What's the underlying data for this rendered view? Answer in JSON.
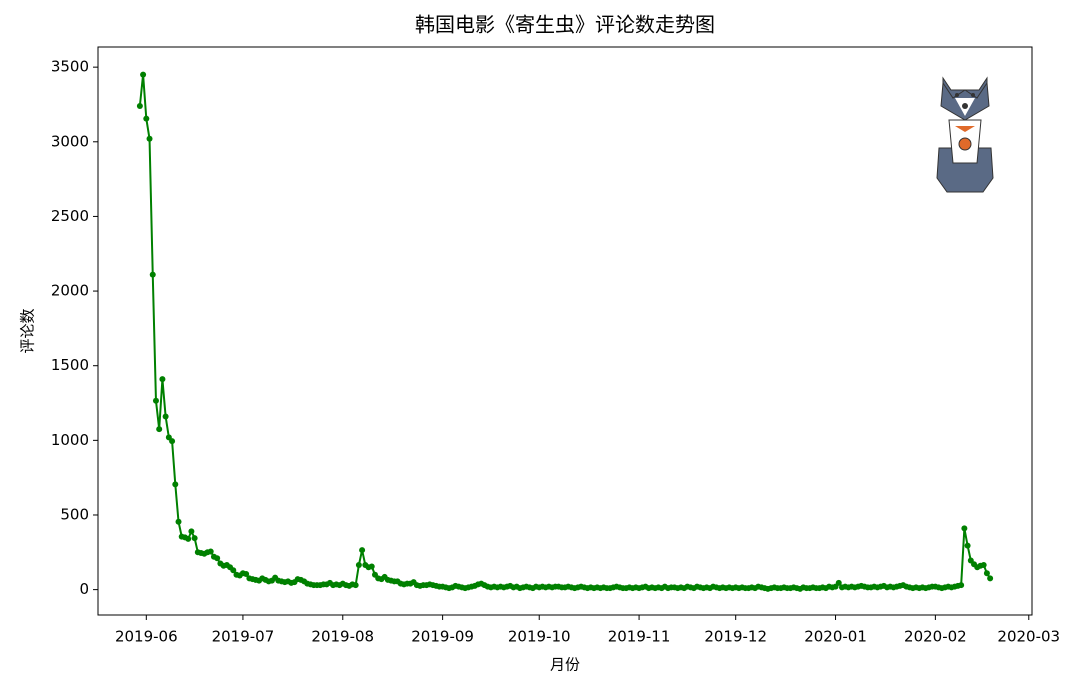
{
  "chart_data": {
    "type": "line",
    "title": "韩国电影《寄生虫》评论数走势图",
    "x_label": "月份",
    "y_label": "评论数",
    "color": "#008000",
    "x": [
      "2019-05-30",
      "2019-05-31",
      "2019-06-01",
      "2019-06-02",
      "2019-06-03",
      "2019-06-04",
      "2019-06-05",
      "2019-06-06",
      "2019-06-07",
      "2019-06-08",
      "2019-06-09",
      "2019-06-10",
      "2019-06-11",
      "2019-06-12",
      "2019-06-13",
      "2019-06-14",
      "2019-06-15",
      "2019-06-16",
      "2019-06-17",
      "2019-06-18",
      "2019-06-19",
      "2019-06-20",
      "2019-06-21",
      "2019-06-22",
      "2019-06-23",
      "2019-06-24",
      "2019-06-25",
      "2019-06-26",
      "2019-06-27",
      "2019-06-28",
      "2019-06-29",
      "2019-06-30",
      "2019-07-01",
      "2019-07-02",
      "2019-07-03",
      "2019-07-04",
      "2019-07-05",
      "2019-07-06",
      "2019-07-07",
      "2019-07-08",
      "2019-07-09",
      "2019-07-10",
      "2019-07-11",
      "2019-07-12",
      "2019-07-13",
      "2019-07-14",
      "2019-07-15",
      "2019-07-16",
      "2019-07-17",
      "2019-07-18",
      "2019-07-19",
      "2019-07-20",
      "2019-07-21",
      "2019-07-22",
      "2019-07-23",
      "2019-07-24",
      "2019-07-25",
      "2019-07-26",
      "2019-07-27",
      "2019-07-28",
      "2019-07-29",
      "2019-07-30",
      "2019-07-31",
      "2019-08-01",
      "2019-08-02",
      "2019-08-03",
      "2019-08-04",
      "2019-08-05",
      "2019-08-06",
      "2019-08-07",
      "2019-08-08",
      "2019-08-09",
      "2019-08-10",
      "2019-08-11",
      "2019-08-12",
      "2019-08-13",
      "2019-08-14",
      "2019-08-15",
      "2019-08-16",
      "2019-08-17",
      "2019-08-18",
      "2019-08-19",
      "2019-08-20",
      "2019-08-21",
      "2019-08-22",
      "2019-08-23",
      "2019-08-24",
      "2019-08-25",
      "2019-08-26",
      "2019-08-27",
      "2019-08-28",
      "2019-08-29",
      "2019-08-30",
      "2019-08-31",
      "2019-09-01",
      "2019-09-02",
      "2019-09-03",
      "2019-09-04",
      "2019-09-05",
      "2019-09-06",
      "2019-09-07",
      "2019-09-08",
      "2019-09-09",
      "2019-09-10",
      "2019-09-11",
      "2019-09-12",
      "2019-09-13",
      "2019-09-14",
      "2019-09-15",
      "2019-09-16",
      "2019-09-17",
      "2019-09-18",
      "2019-09-19",
      "2019-09-20",
      "2019-09-21",
      "2019-09-22",
      "2019-09-23",
      "2019-09-24",
      "2019-09-25",
      "2019-09-26",
      "2019-09-27",
      "2019-09-28",
      "2019-09-29",
      "2019-09-30",
      "2019-10-01",
      "2019-10-02",
      "2019-10-03",
      "2019-10-04",
      "2019-10-05",
      "2019-10-06",
      "2019-10-07",
      "2019-10-08",
      "2019-10-09",
      "2019-10-10",
      "2019-10-11",
      "2019-10-12",
      "2019-10-13",
      "2019-10-14",
      "2019-10-15",
      "2019-10-16",
      "2019-10-17",
      "2019-10-18",
      "2019-10-19",
      "2019-10-20",
      "2019-10-21",
      "2019-10-22",
      "2019-10-23",
      "2019-10-24",
      "2019-10-25",
      "2019-10-26",
      "2019-10-27",
      "2019-10-28",
      "2019-10-29",
      "2019-10-30",
      "2019-10-31",
      "2019-11-01",
      "2019-11-02",
      "2019-11-03",
      "2019-11-04",
      "2019-11-05",
      "2019-11-06",
      "2019-11-07",
      "2019-11-08",
      "2019-11-09",
      "2019-11-10",
      "2019-11-11",
      "2019-11-12",
      "2019-11-13",
      "2019-11-14",
      "2019-11-15",
      "2019-11-16",
      "2019-11-17",
      "2019-11-18",
      "2019-11-19",
      "2019-11-20",
      "2019-11-21",
      "2019-11-22",
      "2019-11-23",
      "2019-11-24",
      "2019-11-25",
      "2019-11-26",
      "2019-11-27",
      "2019-11-28",
      "2019-11-29",
      "2019-11-30",
      "2019-12-01",
      "2019-12-02",
      "2019-12-03",
      "2019-12-04",
      "2019-12-05",
      "2019-12-06",
      "2019-12-07",
      "2019-12-08",
      "2019-12-09",
      "2019-12-10",
      "2019-12-11",
      "2019-12-12",
      "2019-12-13",
      "2019-12-14",
      "2019-12-15",
      "2019-12-16",
      "2019-12-17",
      "2019-12-18",
      "2019-12-19",
      "2019-12-20",
      "2019-12-21",
      "2019-12-22",
      "2019-12-23",
      "2019-12-24",
      "2019-12-25",
      "2019-12-26",
      "2019-12-27",
      "2019-12-28",
      "2019-12-29",
      "2019-12-30",
      "2019-12-31",
      "2020-01-01",
      "2020-01-02",
      "2020-01-03",
      "2020-01-04",
      "2020-01-05",
      "2020-01-06",
      "2020-01-07",
      "2020-01-08",
      "2020-01-09",
      "2020-01-10",
      "2020-01-11",
      "2020-01-12",
      "2020-01-13",
      "2020-01-14",
      "2020-01-15",
      "2020-01-16",
      "2020-01-17",
      "2020-01-18",
      "2020-01-19",
      "2020-01-20",
      "2020-01-21",
      "2020-01-22",
      "2020-01-23",
      "2020-01-24",
      "2020-01-25",
      "2020-01-26",
      "2020-01-27",
      "2020-01-28",
      "2020-01-29",
      "2020-01-30",
      "2020-01-31",
      "2020-02-01",
      "2020-02-02",
      "2020-02-03",
      "2020-02-04",
      "2020-02-05",
      "2020-02-06",
      "2020-02-07",
      "2020-02-08",
      "2020-02-09",
      "2020-02-10",
      "2020-02-11",
      "2020-02-12",
      "2020-02-13",
      "2020-02-14",
      "2020-02-15",
      "2020-02-16",
      "2020-02-17",
      "2020-02-18"
    ],
    "values": [
      3240,
      3450,
      3155,
      3020,
      2110,
      1265,
      1075,
      1410,
      1160,
      1020,
      995,
      705,
      455,
      355,
      350,
      340,
      390,
      345,
      250,
      245,
      240,
      250,
      255,
      220,
      210,
      175,
      160,
      165,
      150,
      130,
      100,
      95,
      110,
      105,
      75,
      70,
      65,
      60,
      75,
      65,
      55,
      60,
      80,
      60,
      55,
      50,
      55,
      45,
      50,
      70,
      65,
      55,
      40,
      35,
      30,
      30,
      30,
      35,
      35,
      45,
      30,
      35,
      30,
      40,
      30,
      25,
      35,
      30,
      165,
      265,
      165,
      150,
      155,
      100,
      75,
      70,
      85,
      65,
      60,
      55,
      55,
      40,
      35,
      40,
      40,
      50,
      30,
      25,
      30,
      30,
      35,
      30,
      25,
      20,
      20,
      15,
      10,
      15,
      25,
      20,
      15,
      10,
      15,
      20,
      25,
      35,
      40,
      30,
      20,
      15,
      20,
      15,
      20,
      15,
      20,
      25,
      15,
      20,
      10,
      15,
      20,
      15,
      10,
      20,
      15,
      20,
      15,
      20,
      15,
      20,
      20,
      15,
      15,
      20,
      15,
      10,
      15,
      20,
      15,
      10,
      15,
      10,
      15,
      10,
      15,
      10,
      10,
      15,
      20,
      15,
      10,
      10,
      15,
      10,
      15,
      10,
      15,
      20,
      10,
      15,
      10,
      15,
      10,
      20,
      10,
      15,
      15,
      10,
      15,
      10,
      20,
      15,
      10,
      20,
      15,
      10,
      15,
      10,
      20,
      15,
      10,
      15,
      10,
      15,
      10,
      15,
      10,
      15,
      10,
      10,
      15,
      10,
      20,
      15,
      10,
      5,
      10,
      15,
      10,
      10,
      15,
      10,
      10,
      15,
      10,
      5,
      15,
      10,
      10,
      15,
      10,
      10,
      15,
      10,
      20,
      15,
      20,
      45,
      15,
      20,
      15,
      20,
      15,
      20,
      25,
      20,
      15,
      15,
      20,
      15,
      20,
      25,
      15,
      20,
      15,
      20,
      25,
      30,
      20,
      15,
      10,
      15,
      10,
      15,
      10,
      15,
      20,
      20,
      15,
      10,
      15,
      20,
      15,
      20,
      25,
      30,
      410,
      295,
      195,
      170,
      150,
      160,
      165,
      110,
      75
    ],
    "xlim": [
      "2019-05-17",
      "2020-03-02"
    ],
    "xticks": [
      {
        "value": "2019-06-01",
        "label": "2019-06"
      },
      {
        "value": "2019-07-01",
        "label": "2019-07"
      },
      {
        "value": "2019-08-01",
        "label": "2019-08"
      },
      {
        "value": "2019-09-01",
        "label": "2019-09"
      },
      {
        "value": "2019-10-01",
        "label": "2019-10"
      },
      {
        "value": "2019-11-01",
        "label": "2019-11"
      },
      {
        "value": "2019-12-01",
        "label": "2019-12"
      },
      {
        "value": "2020-01-01",
        "label": "2020-01"
      },
      {
        "value": "2020-02-01",
        "label": "2020-02"
      },
      {
        "value": "2020-03-01",
        "label": "2020-03"
      }
    ],
    "ylim": [
      -170,
      3635
    ],
    "yticks": [
      0,
      500,
      1000,
      1500,
      2000,
      2500,
      3000,
      3500
    ]
  }
}
